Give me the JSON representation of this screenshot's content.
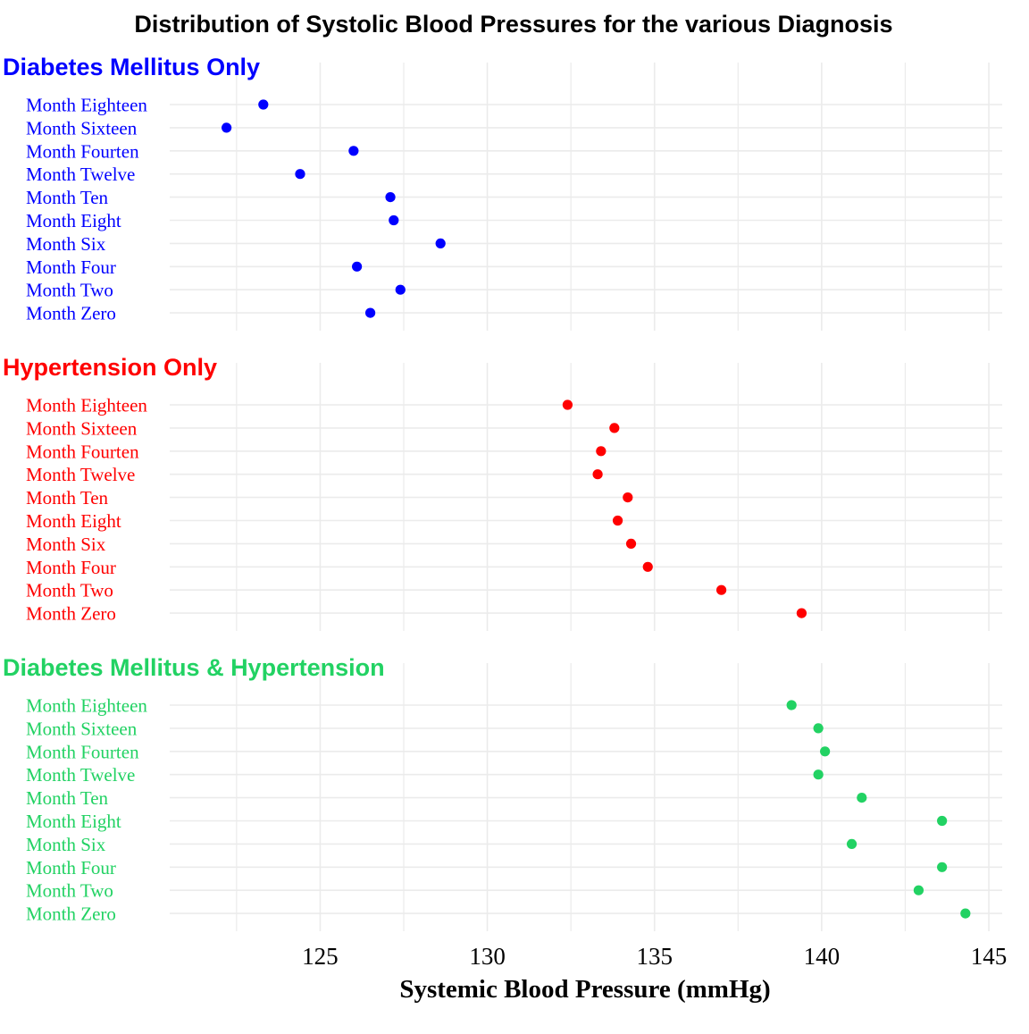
{
  "chart_data": {
    "type": "scatter",
    "title": "Distribution of Systolic Blood Pressures for  the various Diagnosis",
    "xlabel": "Systemic Blood Pressure (mmHg)",
    "ylabel": "",
    "xlim": [
      120.5,
      145.4
    ],
    "xticks": [
      125,
      130,
      135,
      140,
      145
    ],
    "grid": true,
    "legend": "none",
    "categories": [
      "Month Eighteen",
      "Month Sixteen",
      "Month Fourten",
      "Month Twelve",
      "Month Ten",
      "Month Eight",
      "Month Six",
      "Month Four",
      "Month Two",
      "Month Zero"
    ],
    "panels": [
      {
        "name": "Diabetes Mellitus Only",
        "color": "#0000FF",
        "values": [
          123.3,
          122.2,
          126.0,
          124.4,
          127.1,
          127.2,
          128.6,
          126.1,
          127.4,
          126.5
        ]
      },
      {
        "name": "Hypertension Only",
        "color": "#FF0000",
        "values": [
          132.4,
          133.8,
          133.4,
          133.3,
          134.2,
          133.9,
          134.3,
          134.8,
          137.0,
          139.4
        ]
      },
      {
        "name": "Diabetes Mellitus & Hypertension",
        "color": "#22D263",
        "values": [
          139.1,
          139.9,
          140.1,
          139.9,
          141.2,
          143.6,
          140.9,
          143.6,
          142.9,
          144.3
        ]
      }
    ]
  }
}
